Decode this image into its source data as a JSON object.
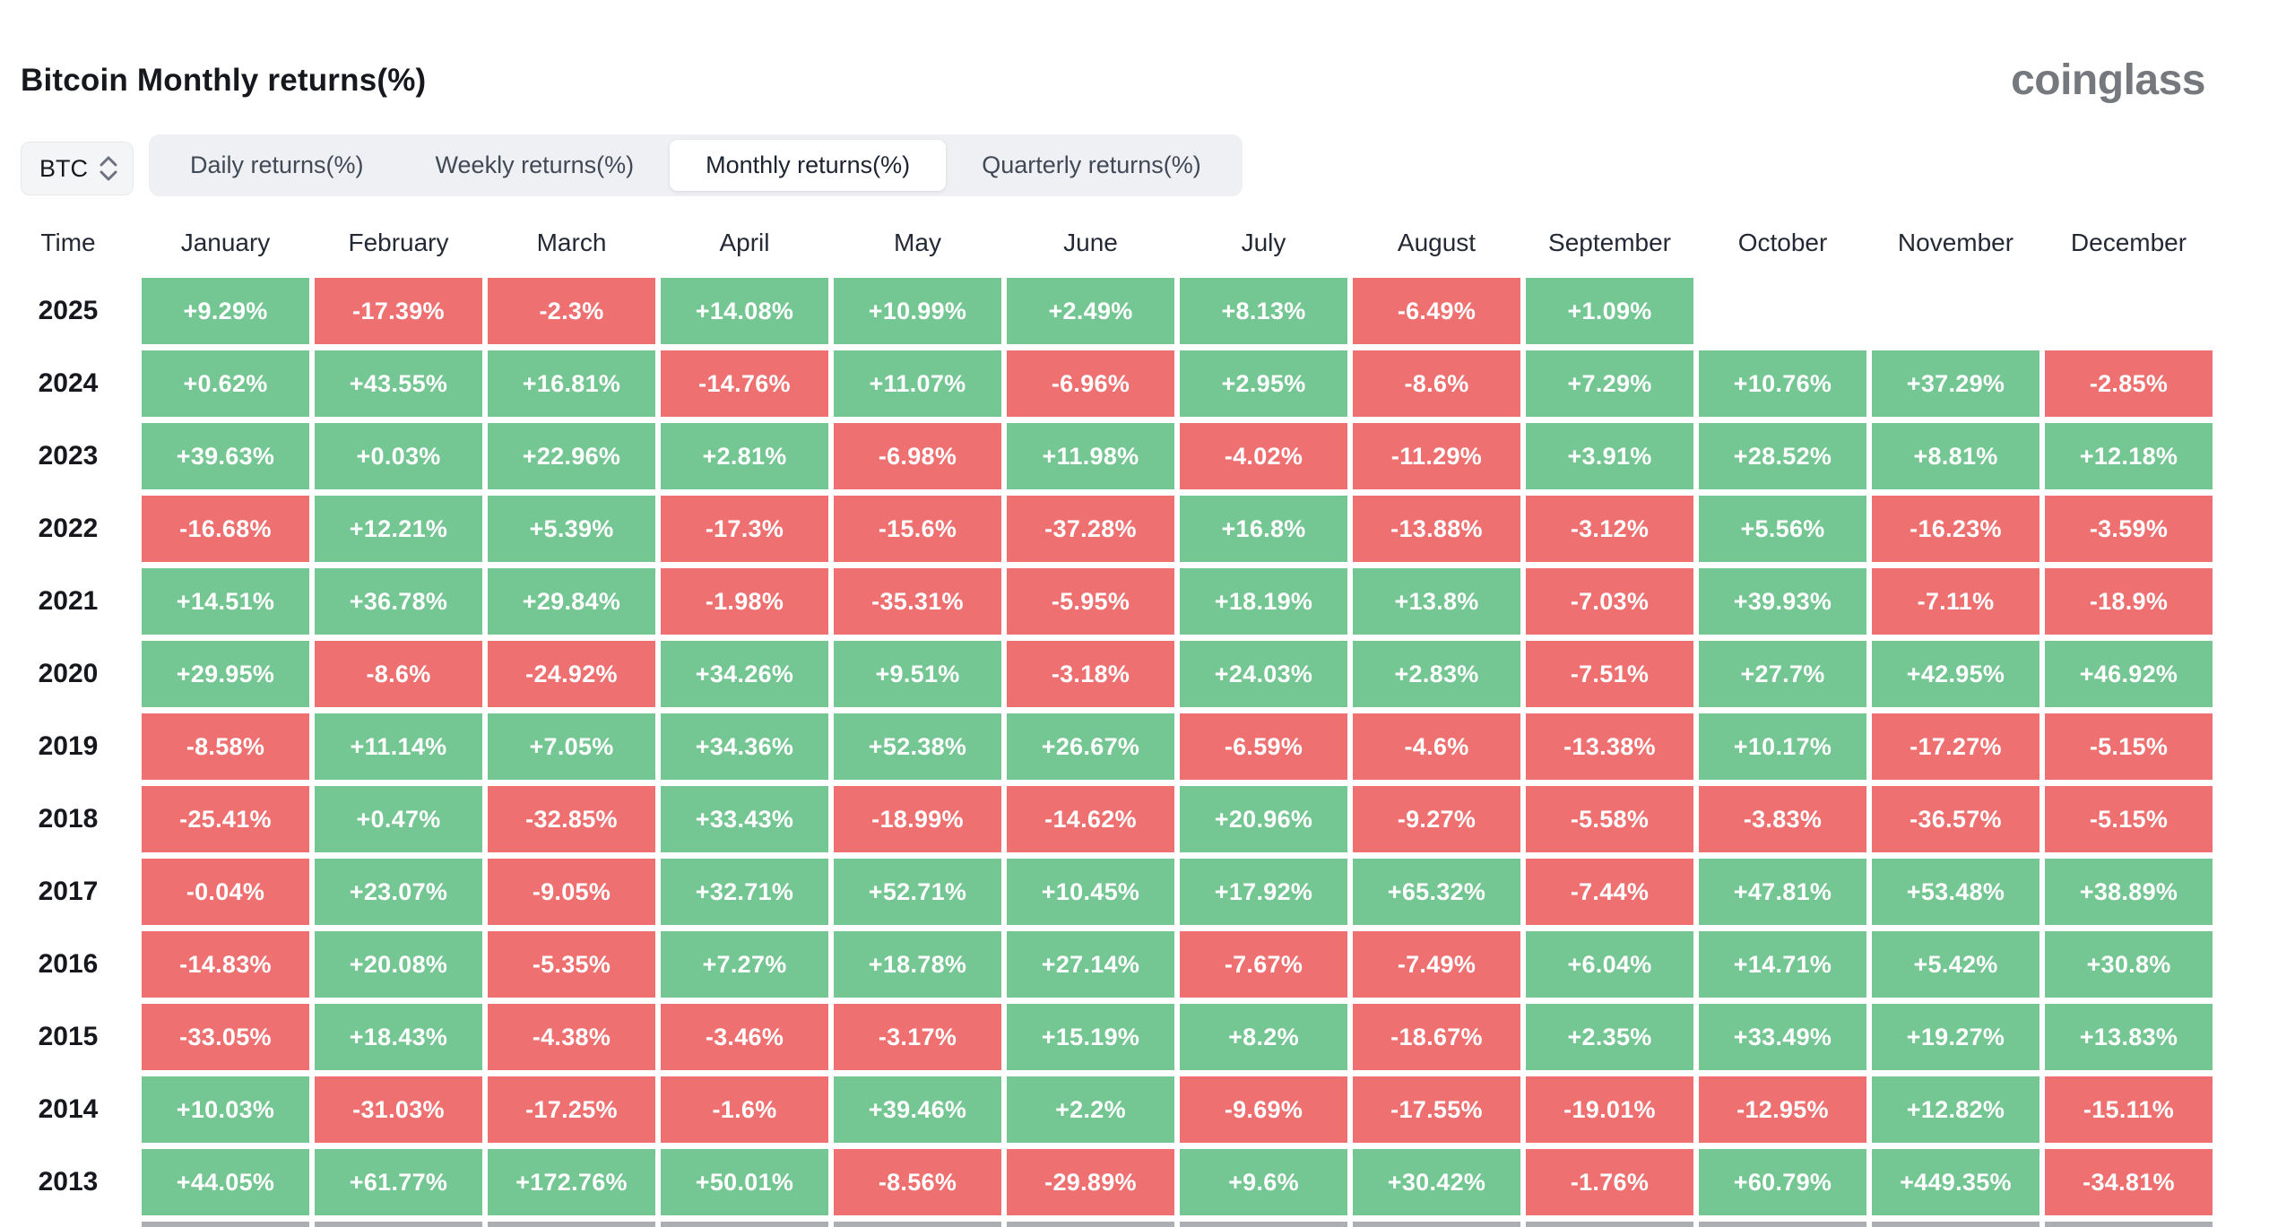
{
  "header": {
    "title": "Bitcoin Monthly returns(%)",
    "logo_text": "coinglass"
  },
  "controls": {
    "symbol_select": {
      "value": "BTC"
    },
    "tabs": [
      {
        "label": "Daily returns(%)",
        "active": false
      },
      {
        "label": "Weekly returns(%)",
        "active": false
      },
      {
        "label": "Monthly returns(%)",
        "active": true
      },
      {
        "label": "Quarterly returns(%)",
        "active": false
      }
    ]
  },
  "colors": {
    "positive": "#74c692",
    "negative": "#ee7070",
    "partial_next_row": "#abaeb3"
  },
  "chart_data": {
    "type": "heatmap",
    "title": "Bitcoin Monthly returns(%)",
    "time_header": "Time",
    "months": [
      "January",
      "February",
      "March",
      "April",
      "May",
      "June",
      "July",
      "August",
      "September",
      "October",
      "November",
      "December"
    ],
    "rows": [
      {
        "year": "2025",
        "values": [
          "+9.29%",
          "-17.39%",
          "-2.3%",
          "+14.08%",
          "+10.99%",
          "+2.49%",
          "+8.13%",
          "-6.49%",
          "+1.09%",
          null,
          null,
          null
        ]
      },
      {
        "year": "2024",
        "values": [
          "+0.62%",
          "+43.55%",
          "+16.81%",
          "-14.76%",
          "+11.07%",
          "-6.96%",
          "+2.95%",
          "-8.6%",
          "+7.29%",
          "+10.76%",
          "+37.29%",
          "-2.85%"
        ]
      },
      {
        "year": "2023",
        "values": [
          "+39.63%",
          "+0.03%",
          "+22.96%",
          "+2.81%",
          "-6.98%",
          "+11.98%",
          "-4.02%",
          "-11.29%",
          "+3.91%",
          "+28.52%",
          "+8.81%",
          "+12.18%"
        ]
      },
      {
        "year": "2022",
        "values": [
          "-16.68%",
          "+12.21%",
          "+5.39%",
          "-17.3%",
          "-15.6%",
          "-37.28%",
          "+16.8%",
          "-13.88%",
          "-3.12%",
          "+5.56%",
          "-16.23%",
          "-3.59%"
        ]
      },
      {
        "year": "2021",
        "values": [
          "+14.51%",
          "+36.78%",
          "+29.84%",
          "-1.98%",
          "-35.31%",
          "-5.95%",
          "+18.19%",
          "+13.8%",
          "-7.03%",
          "+39.93%",
          "-7.11%",
          "-18.9%"
        ]
      },
      {
        "year": "2020",
        "values": [
          "+29.95%",
          "-8.6%",
          "-24.92%",
          "+34.26%",
          "+9.51%",
          "-3.18%",
          "+24.03%",
          "+2.83%",
          "-7.51%",
          "+27.7%",
          "+42.95%",
          "+46.92%"
        ]
      },
      {
        "year": "2019",
        "values": [
          "-8.58%",
          "+11.14%",
          "+7.05%",
          "+34.36%",
          "+52.38%",
          "+26.67%",
          "-6.59%",
          "-4.6%",
          "-13.38%",
          "+10.17%",
          "-17.27%",
          "-5.15%"
        ]
      },
      {
        "year": "2018",
        "values": [
          "-25.41%",
          "+0.47%",
          "-32.85%",
          "+33.43%",
          "-18.99%",
          "-14.62%",
          "+20.96%",
          "-9.27%",
          "-5.58%",
          "-3.83%",
          "-36.57%",
          "-5.15%"
        ]
      },
      {
        "year": "2017",
        "values": [
          "-0.04%",
          "+23.07%",
          "-9.05%",
          "+32.71%",
          "+52.71%",
          "+10.45%",
          "+17.92%",
          "+65.32%",
          "-7.44%",
          "+47.81%",
          "+53.48%",
          "+38.89%"
        ]
      },
      {
        "year": "2016",
        "values": [
          "-14.83%",
          "+20.08%",
          "-5.35%",
          "+7.27%",
          "+18.78%",
          "+27.14%",
          "-7.67%",
          "-7.49%",
          "+6.04%",
          "+14.71%",
          "+5.42%",
          "+30.8%"
        ]
      },
      {
        "year": "2015",
        "values": [
          "-33.05%",
          "+18.43%",
          "-4.38%",
          "-3.46%",
          "-3.17%",
          "+15.19%",
          "+8.2%",
          "-18.67%",
          "+2.35%",
          "+33.49%",
          "+19.27%",
          "+13.83%"
        ]
      },
      {
        "year": "2014",
        "values": [
          "+10.03%",
          "-31.03%",
          "-17.25%",
          "-1.6%",
          "+39.46%",
          "+2.2%",
          "-9.69%",
          "-17.55%",
          "-19.01%",
          "-12.95%",
          "+12.82%",
          "-15.11%"
        ]
      },
      {
        "year": "2013",
        "values": [
          "+44.05%",
          "+61.77%",
          "+172.76%",
          "+50.01%",
          "-8.56%",
          "-29.89%",
          "+9.6%",
          "+30.42%",
          "-1.76%",
          "+60.79%",
          "+449.35%",
          "-34.81%"
        ]
      }
    ],
    "partial_next_row_visible": true
  }
}
